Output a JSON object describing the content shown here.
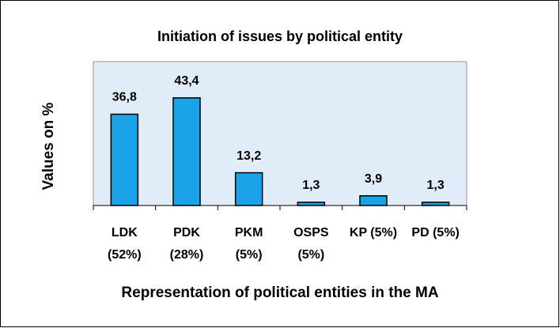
{
  "chart_data": {
    "type": "bar",
    "title": "Initiation of issues by political entity",
    "y_label": "Values on %",
    "x_label": "Representation of political entities in the MA",
    "categories": [
      "LDK (52%)",
      "PDK (28%)",
      "PKM (5%)",
      "OSPS (5%)",
      "KP (5%)",
      "PD (5%)"
    ],
    "values": [
      36.8,
      43.4,
      13.2,
      1.3,
      3.9,
      1.3
    ],
    "value_labels": [
      "36,8",
      "43,4",
      "13,2",
      "1,3",
      "3,9",
      "1,3"
    ],
    "color": "#1aa3e8",
    "ylim": [
      0,
      58
    ]
  }
}
